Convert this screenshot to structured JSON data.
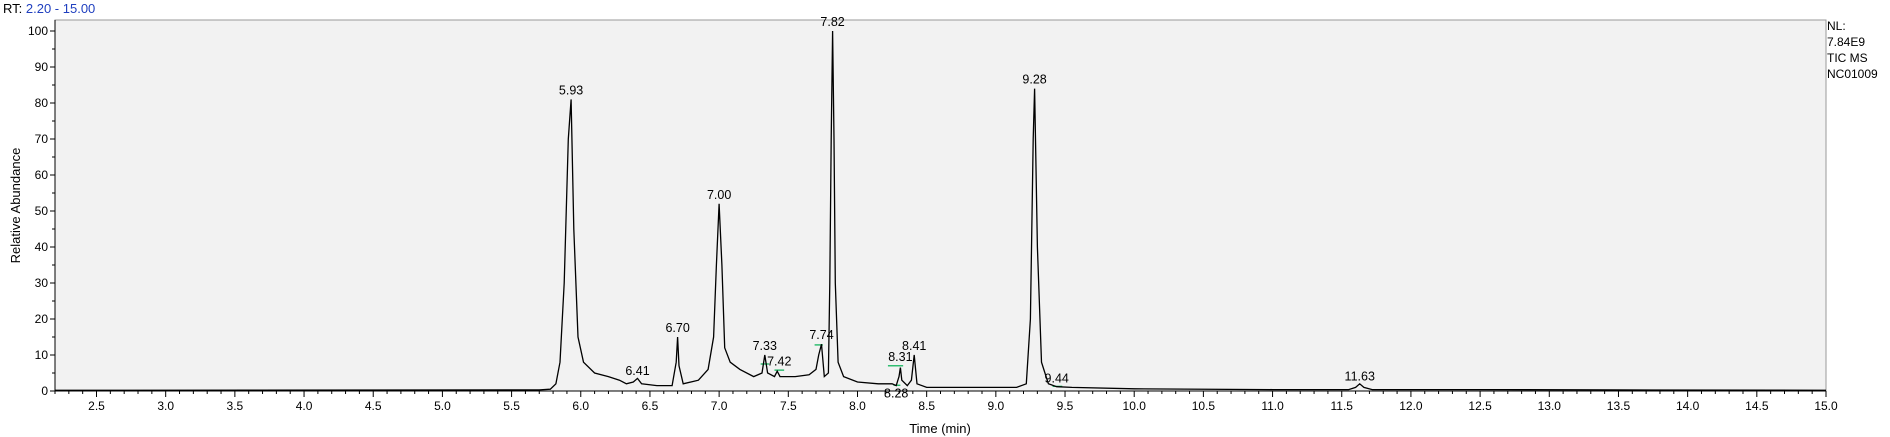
{
  "header": {
    "range_label": "RT:",
    "range_value": "2.20 - 15.00"
  },
  "side_info": {
    "lines": [
      "NL:",
      "7.84E9",
      "TIC  MS",
      "NC01009"
    ]
  },
  "colors": {
    "plot_bg": "#f2f2f2",
    "trace": "#000000",
    "marker": "#00b050",
    "range_text": "#1f3fbf"
  },
  "chart_data": {
    "type": "line",
    "xlabel": "Time (min)",
    "ylabel": "Relative Abundance",
    "xlim": [
      2.2,
      15.0
    ],
    "ylim": [
      0,
      100
    ],
    "x_ticks": [
      "2.5",
      "3.0",
      "3.5",
      "4.0",
      "4.5",
      "5.0",
      "5.5",
      "6.0",
      "6.5",
      "7.0",
      "7.5",
      "8.0",
      "8.5",
      "9.0",
      "9.5",
      "10.0",
      "10.5",
      "11.0",
      "11.5",
      "12.0",
      "12.5",
      "13.0",
      "13.5",
      "14.0",
      "14.5",
      "15.0"
    ],
    "y_ticks": [
      "0",
      "10",
      "20",
      "30",
      "40",
      "50",
      "60",
      "70",
      "80",
      "90",
      "100"
    ],
    "grid": false,
    "peak_labels": [
      {
        "label": "5.93",
        "x": 5.93,
        "y": 81
      },
      {
        "label": "6.41",
        "x": 6.41,
        "y": 3
      },
      {
        "label": "6.70",
        "x": 6.7,
        "y": 15
      },
      {
        "label": "7.00",
        "x": 7.0,
        "y": 52
      },
      {
        "label": "7.33",
        "x": 7.33,
        "y": 10
      },
      {
        "label": "7.42",
        "x": 7.42,
        "y": 6
      },
      {
        "label": "7.74",
        "x": 7.74,
        "y": 13
      },
      {
        "label": "7.82",
        "x": 7.82,
        "y": 100
      },
      {
        "label": "8.31",
        "x": 8.31,
        "y": 7
      },
      {
        "label": "8.28",
        "x": 8.28,
        "y": 1
      },
      {
        "label": "8.41",
        "x": 8.41,
        "y": 10
      },
      {
        "label": "9.28",
        "x": 9.28,
        "y": 84
      },
      {
        "label": "9.44",
        "x": 9.44,
        "y": 1
      },
      {
        "label": "11.63",
        "x": 11.63,
        "y": 1.5
      }
    ],
    "trace": [
      [
        2.2,
        0.2
      ],
      [
        5.7,
        0.3
      ],
      [
        5.78,
        0.5
      ],
      [
        5.82,
        2
      ],
      [
        5.85,
        8
      ],
      [
        5.88,
        30
      ],
      [
        5.91,
        70
      ],
      [
        5.93,
        81
      ],
      [
        5.95,
        45
      ],
      [
        5.98,
        15
      ],
      [
        6.02,
        8
      ],
      [
        6.1,
        5
      ],
      [
        6.2,
        4
      ],
      [
        6.28,
        3
      ],
      [
        6.33,
        2
      ],
      [
        6.38,
        2.5
      ],
      [
        6.41,
        3.5
      ],
      [
        6.44,
        2
      ],
      [
        6.55,
        1.5
      ],
      [
        6.66,
        1.5
      ],
      [
        6.69,
        8
      ],
      [
        6.7,
        15
      ],
      [
        6.71,
        7
      ],
      [
        6.74,
        2
      ],
      [
        6.85,
        3
      ],
      [
        6.92,
        6
      ],
      [
        6.96,
        15
      ],
      [
        6.98,
        35
      ],
      [
        7.0,
        52
      ],
      [
        7.02,
        35
      ],
      [
        7.04,
        12
      ],
      [
        7.08,
        8
      ],
      [
        7.15,
        6
      ],
      [
        7.25,
        4
      ],
      [
        7.31,
        5
      ],
      [
        7.33,
        10
      ],
      [
        7.35,
        5
      ],
      [
        7.4,
        4
      ],
      [
        7.42,
        5.5
      ],
      [
        7.44,
        4
      ],
      [
        7.55,
        4
      ],
      [
        7.65,
        4.5
      ],
      [
        7.7,
        6
      ],
      [
        7.72,
        10
      ],
      [
        7.74,
        13
      ],
      [
        7.76,
        4
      ],
      [
        7.79,
        5
      ],
      [
        7.8,
        30
      ],
      [
        7.81,
        70
      ],
      [
        7.82,
        100
      ],
      [
        7.83,
        70
      ],
      [
        7.84,
        30
      ],
      [
        7.86,
        8
      ],
      [
        7.9,
        4
      ],
      [
        8.0,
        2.5
      ],
      [
        8.15,
        2
      ],
      [
        8.25,
        2
      ],
      [
        8.28,
        1.5
      ],
      [
        8.3,
        4
      ],
      [
        8.31,
        6.5
      ],
      [
        8.32,
        3
      ],
      [
        8.36,
        1.5
      ],
      [
        8.39,
        3
      ],
      [
        8.41,
        10
      ],
      [
        8.43,
        2
      ],
      [
        8.5,
        1
      ],
      [
        8.8,
        1
      ],
      [
        9.15,
        1
      ],
      [
        9.22,
        2
      ],
      [
        9.25,
        20
      ],
      [
        9.27,
        70
      ],
      [
        9.28,
        84
      ],
      [
        9.3,
        40
      ],
      [
        9.33,
        8
      ],
      [
        9.38,
        2
      ],
      [
        9.44,
        1.2
      ],
      [
        9.55,
        1
      ],
      [
        10.0,
        0.6
      ],
      [
        11.0,
        0.4
      ],
      [
        11.55,
        0.4
      ],
      [
        11.6,
        1
      ],
      [
        11.63,
        2
      ],
      [
        11.66,
        1
      ],
      [
        11.72,
        0.4
      ],
      [
        12.5,
        0.4
      ],
      [
        13.5,
        0.3
      ],
      [
        15.0,
        0.2
      ]
    ]
  }
}
